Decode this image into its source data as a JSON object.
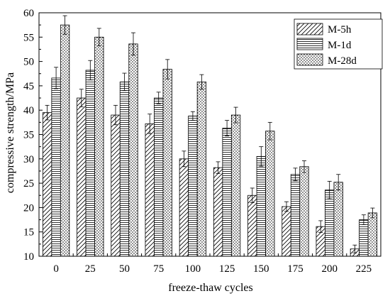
{
  "chart_data": {
    "type": "bar",
    "title": "",
    "xlabel": "freeze-thaw cycles",
    "ylabel": "compressive strength/MPa",
    "ylim": [
      10,
      60
    ],
    "yticks": [
      10,
      15,
      20,
      25,
      30,
      35,
      40,
      45,
      50,
      55,
      60
    ],
    "categories": [
      "0",
      "25",
      "50",
      "75",
      "100",
      "125",
      "150",
      "175",
      "200",
      "225"
    ],
    "error_bars": true,
    "grid": false,
    "legend_position": "top-right",
    "series": [
      {
        "name": "M-5h",
        "pattern": "diagonal-hatch",
        "values": [
          39.5,
          42.5,
          39.0,
          37.2,
          30.0,
          28.2,
          22.5,
          20.2,
          16.1,
          11.5
        ],
        "errors": [
          1.5,
          1.8,
          2.0,
          2.0,
          1.6,
          1.2,
          1.5,
          1.0,
          1.2,
          0.8
        ]
      },
      {
        "name": "M-1d",
        "pattern": "horizontal-lines",
        "values": [
          46.6,
          48.2,
          45.8,
          42.5,
          38.8,
          36.3,
          30.5,
          26.8,
          23.6,
          17.5
        ],
        "errors": [
          2.2,
          2.0,
          1.8,
          1.2,
          0.9,
          1.6,
          2.0,
          1.3,
          1.8,
          1.0
        ]
      },
      {
        "name": "M-28d",
        "pattern": "dotted",
        "values": [
          57.5,
          55.0,
          53.6,
          48.4,
          45.8,
          39.0,
          35.7,
          28.4,
          25.2,
          18.9
        ],
        "errors": [
          1.9,
          1.8,
          2.3,
          2.0,
          1.5,
          1.6,
          1.8,
          1.2,
          1.6,
          1.0
        ]
      }
    ]
  }
}
